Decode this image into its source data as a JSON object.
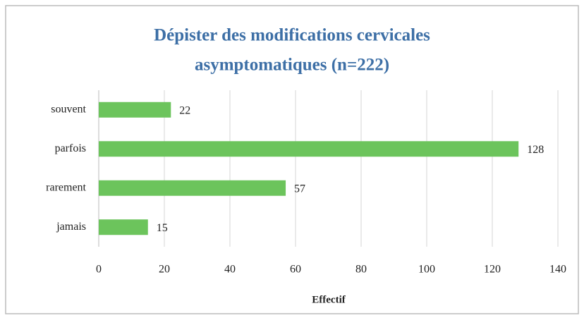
{
  "chart_data": {
    "type": "bar",
    "orientation": "horizontal",
    "title": [
      "Dépister des modifications cervicales",
      "asymptomatiques (n=222)"
    ],
    "x_label": "Effectif",
    "categories": [
      "souvent",
      "parfois",
      "rarement",
      "jamais"
    ],
    "values": [
      22,
      128,
      57,
      15
    ],
    "color": "#6cc45c",
    "xlim": [
      0,
      140
    ],
    "xticks": [
      0,
      20,
      40,
      60,
      80,
      100,
      120,
      140
    ],
    "grid": true
  }
}
